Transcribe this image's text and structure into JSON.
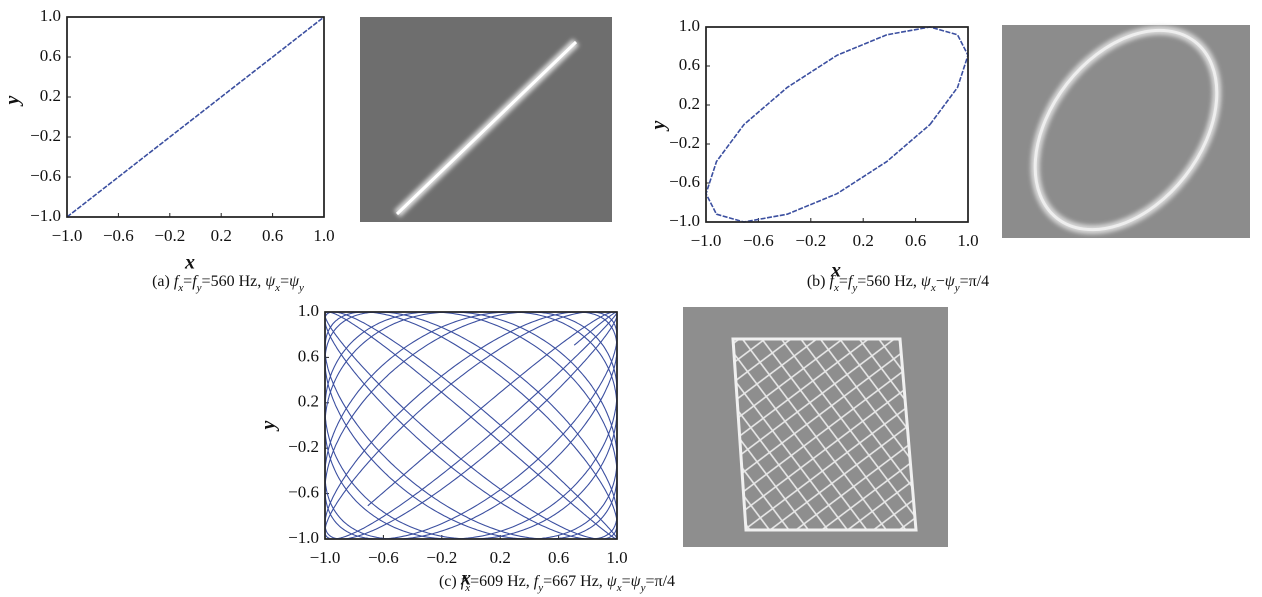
{
  "chart_data": [
    {
      "type": "line",
      "color": "#3b4fa0",
      "x_label": "x",
      "y_label": "y",
      "x": [
        -1.0,
        1.0
      ],
      "y": [
        -1.0,
        1.0
      ],
      "xlim": [
        -1.0,
        1.0
      ],
      "ylim": [
        -1.0,
        1.0
      ],
      "xticks": [
        {
          "value": -1.0,
          "label": "−1.0"
        },
        {
          "value": -0.6,
          "label": "−0.6"
        },
        {
          "value": -0.2,
          "label": "−0.2"
        },
        {
          "value": 0.2,
          "label": "0.2"
        },
        {
          "value": 0.6,
          "label": "0.6"
        },
        {
          "value": 1.0,
          "label": "1.0"
        }
      ],
      "yticks": [
        {
          "value": -1.0,
          "label": "−1.0"
        },
        {
          "value": -0.6,
          "label": "−0.6"
        },
        {
          "value": -0.2,
          "label": "−0.2"
        },
        {
          "value": 0.2,
          "label": "0.2"
        },
        {
          "value": 0.6,
          "label": "0.6"
        },
        {
          "value": 1.0,
          "label": "1.0"
        }
      ],
      "caption": [
        "(a) ",
        "f",
        {
          "sub": "x"
        },
        "=",
        "f",
        {
          "sub": "y"
        },
        "=",
        560,
        " Hz, ",
        "ψ",
        {
          "sub": "x"
        },
        "=",
        "ψ",
        {
          "sub": "y"
        }
      ]
    },
    {
      "type": "line",
      "color": "#3b4fa0",
      "x_label": "x",
      "y_label": "y",
      "x": [
        0.71,
        0.92,
        1.0,
        0.92,
        0.71,
        0.38,
        0.0,
        -0.38,
        -0.71,
        -0.92,
        -1.0,
        -0.92,
        -0.71,
        -0.38,
        0.0,
        0.38,
        0.71
      ],
      "y": [
        0.0,
        0.38,
        0.71,
        0.92,
        1.0,
        0.92,
        0.71,
        0.38,
        0.0,
        -0.38,
        -0.71,
        -0.92,
        -1.0,
        -0.92,
        -0.71,
        -0.38,
        0.0
      ],
      "xlim": [
        -1.0,
        1.0
      ],
      "ylim": [
        -1.0,
        1.0
      ],
      "xticks": [
        {
          "value": -1.0,
          "label": "−1.0"
        },
        {
          "value": -0.6,
          "label": "−0.6"
        },
        {
          "value": -0.2,
          "label": "−0.2"
        },
        {
          "value": 0.2,
          "label": "0.2"
        },
        {
          "value": 0.6,
          "label": "0.6"
        },
        {
          "value": 1.0,
          "label": "1.0"
        }
      ],
      "yticks": [
        {
          "value": -1.0,
          "label": "−1.0"
        },
        {
          "value": -0.6,
          "label": "−0.6"
        },
        {
          "value": -0.2,
          "label": "−0.2"
        },
        {
          "value": 0.2,
          "label": "0.2"
        },
        {
          "value": 0.6,
          "label": "0.6"
        },
        {
          "value": 1.0,
          "label": "1.0"
        }
      ],
      "caption": [
        "(b) ",
        "f",
        {
          "sub": "x"
        },
        "=",
        "f",
        {
          "sub": "y"
        },
        "=",
        560,
        " Hz, ",
        "ψ",
        {
          "sub": "x"
        },
        "−",
        "ψ",
        {
          "sub": "y"
        },
        "=π/4"
      ]
    },
    {
      "type": "lissajous",
      "color": "#3b4fa0",
      "x_label": "x",
      "y_label": "y",
      "xlim": [
        -1.0,
        1.0
      ],
      "ylim": [
        -1.0,
        1.0
      ],
      "xticks": [
        {
          "value": -1.0,
          "label": "−1.0"
        },
        {
          "value": -0.6,
          "label": "−0.6"
        },
        {
          "value": -0.2,
          "label": "−0.2"
        },
        {
          "value": 0.2,
          "label": "0.2"
        },
        {
          "value": 0.6,
          "label": "0.6"
        },
        {
          "value": 1.0,
          "label": "1.0"
        }
      ],
      "yticks": [
        {
          "value": -1.0,
          "label": "−1.0"
        },
        {
          "value": -0.6,
          "label": "−0.6"
        },
        {
          "value": -0.2,
          "label": "−0.2"
        },
        {
          "value": 0.2,
          "label": "0.2"
        },
        {
          "value": 0.6,
          "label": "0.6"
        },
        {
          "value": 1.0,
          "label": "1.0"
        }
      ],
      "caption": [
        "(c) ",
        "f",
        {
          "sub": "x"
        },
        "=",
        609,
        " Hz, ",
        "f",
        {
          "sub": "y"
        },
        "=",
        667,
        " Hz, ",
        "ψ",
        {
          "sub": "x"
        },
        "=",
        "ψ",
        {
          "sub": "y"
        },
        "=π/4"
      ]
    }
  ]
}
